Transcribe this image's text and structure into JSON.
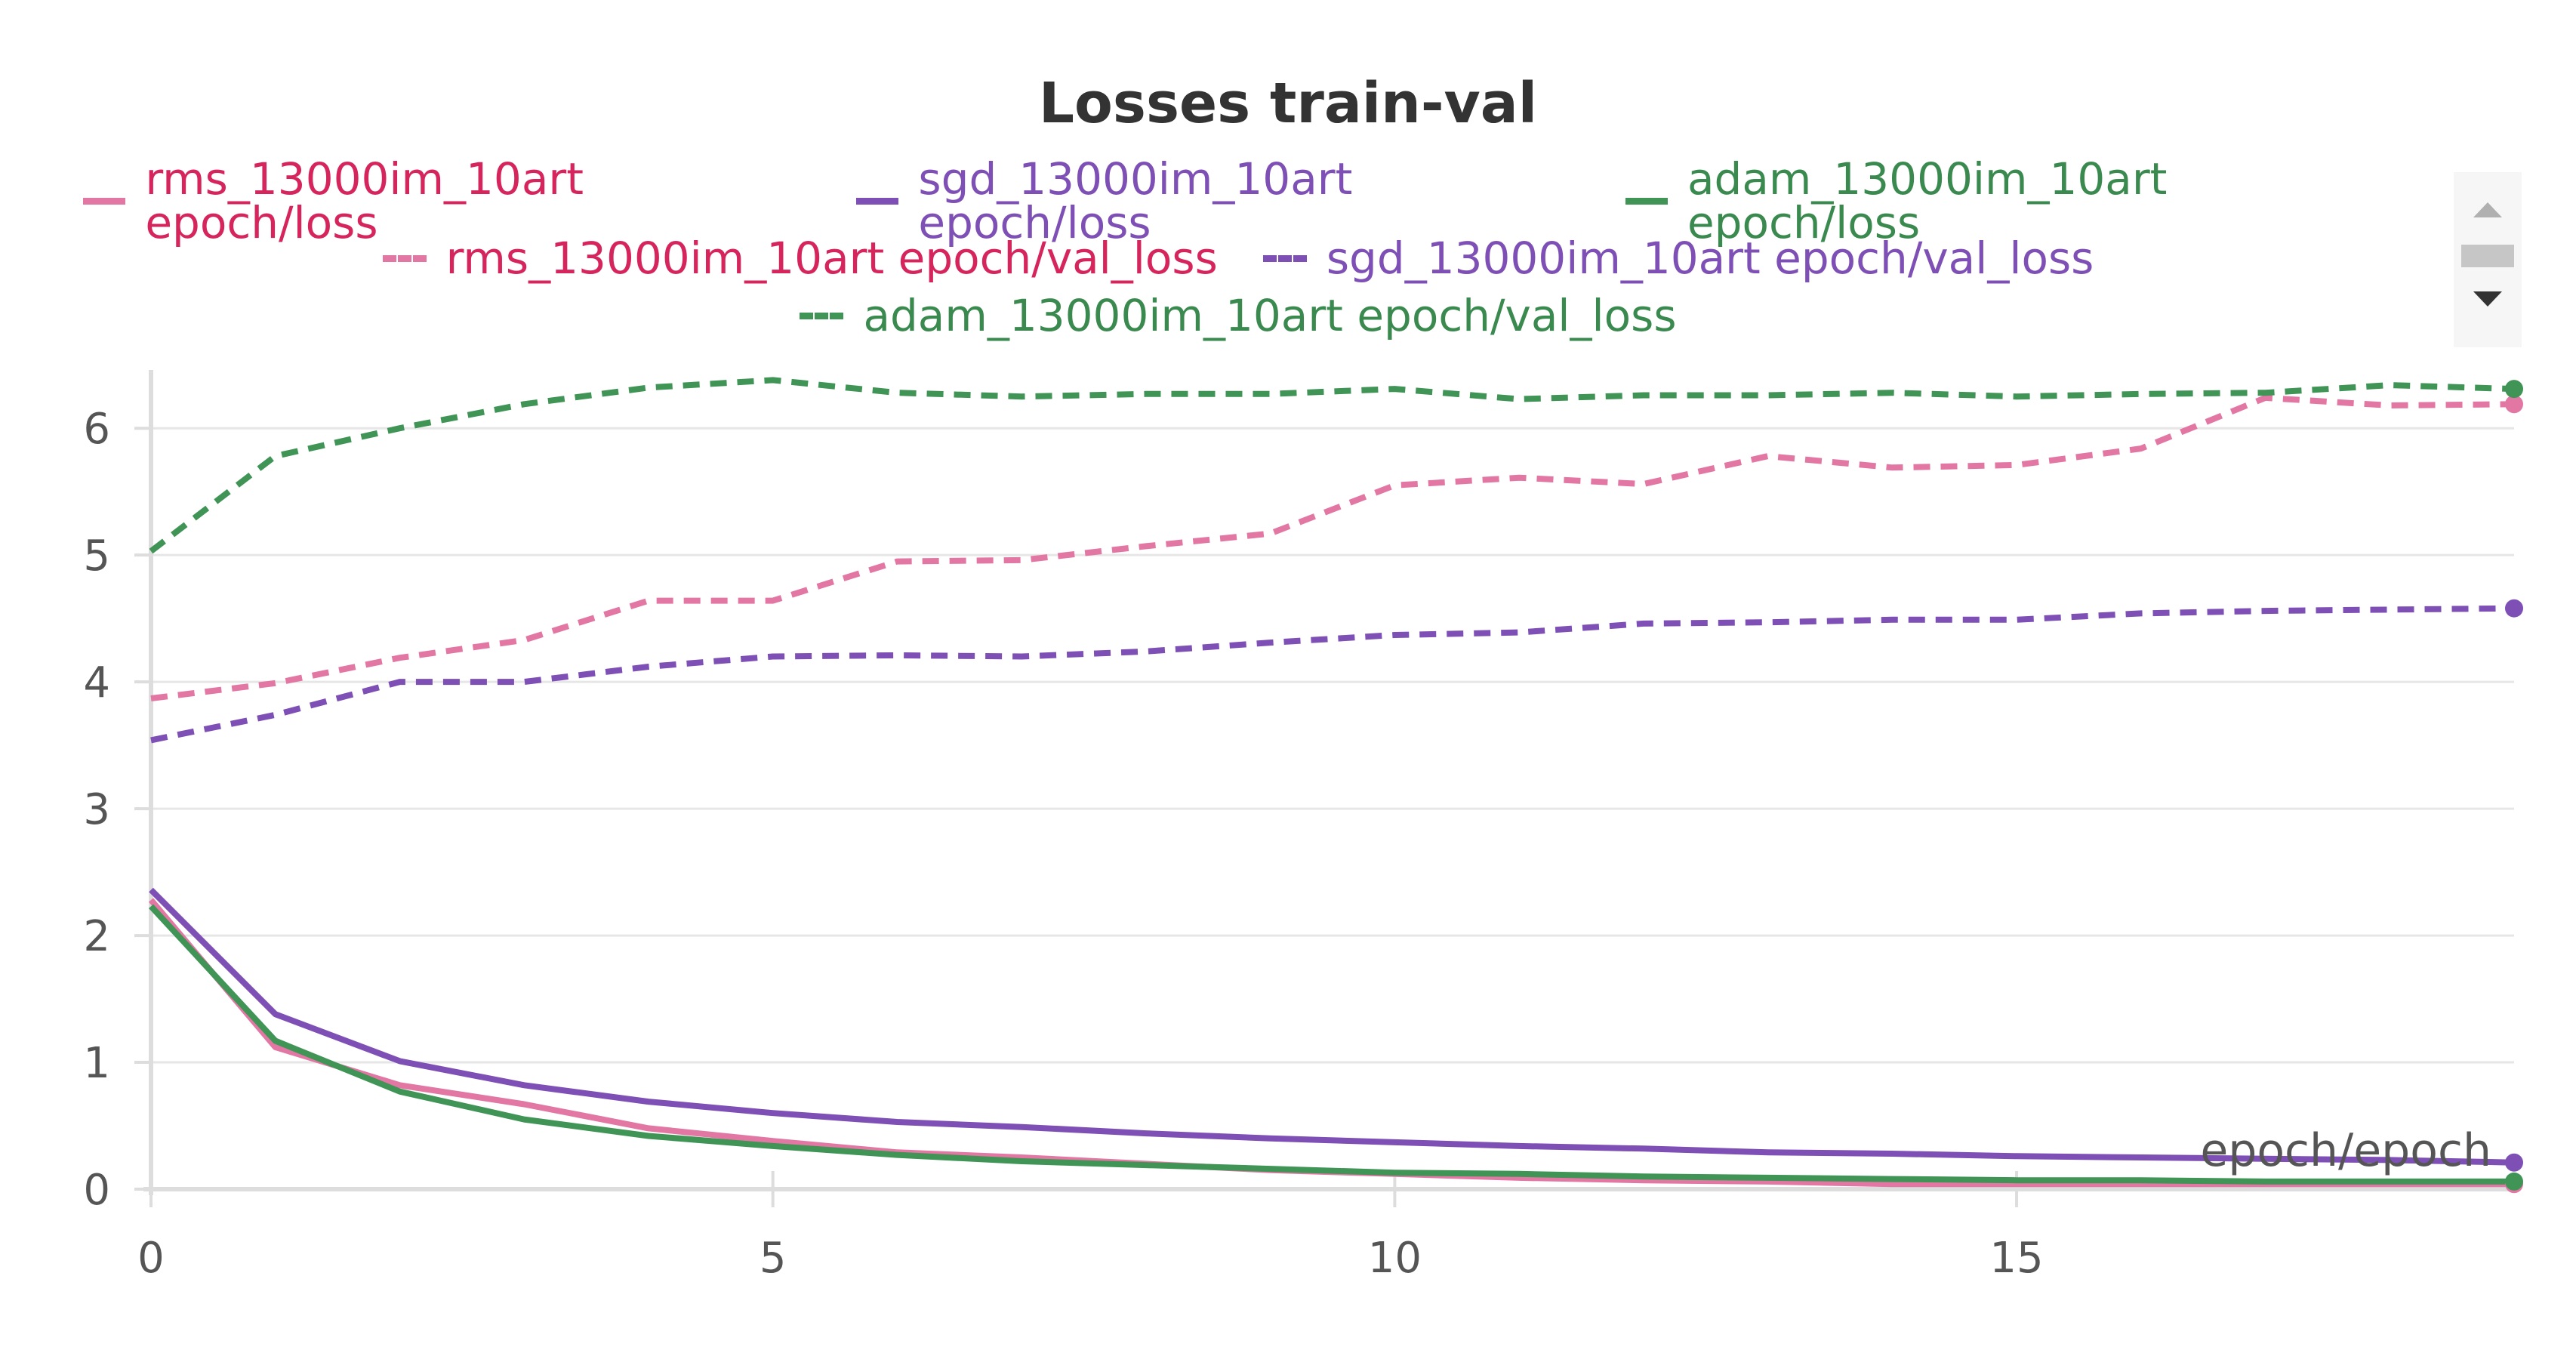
{
  "chart_data": {
    "type": "line",
    "title": "Losses train-val",
    "xlabel": "epoch/epoch",
    "ylabel": "",
    "xlim": [
      0,
      19
    ],
    "ylim": [
      0,
      6.4
    ],
    "xticks": [
      0,
      5,
      10,
      15
    ],
    "yticks": [
      0,
      1,
      2,
      3,
      4,
      5,
      6
    ],
    "grid": "horizontal",
    "legend_position": "top-center",
    "x": [
      0,
      1,
      2,
      3,
      4,
      5,
      6,
      7,
      8,
      9,
      10,
      11,
      12,
      13,
      14,
      15,
      16,
      17,
      18,
      19
    ],
    "series": [
      {
        "name": "rms_13000im_10art epoch/loss",
        "color": "#e377a4",
        "label_color": "#d6245d",
        "dash": false,
        "values": [
          2.28,
          1.12,
          0.82,
          0.67,
          0.48,
          0.38,
          0.29,
          0.25,
          0.2,
          0.15,
          0.12,
          0.09,
          0.07,
          0.06,
          0.04,
          0.04,
          0.04,
          0.04,
          0.04,
          0.04
        ]
      },
      {
        "name": "sgd_13000im_10art epoch/loss",
        "color": "#7e4fb5",
        "label_color": "#7e4fb5",
        "dash": false,
        "values": [
          2.36,
          1.38,
          1.01,
          0.82,
          0.69,
          0.6,
          0.53,
          0.49,
          0.44,
          0.4,
          0.37,
          0.34,
          0.32,
          0.29,
          0.28,
          0.26,
          0.25,
          0.24,
          0.23,
          0.21
        ]
      },
      {
        "name": "adam_13000im_10art epoch/loss",
        "color": "#3f9456",
        "label_color": "#3a8a4f",
        "dash": false,
        "values": [
          2.23,
          1.17,
          0.77,
          0.55,
          0.42,
          0.34,
          0.27,
          0.22,
          0.19,
          0.16,
          0.13,
          0.12,
          0.1,
          0.09,
          0.08,
          0.07,
          0.07,
          0.06,
          0.06,
          0.06
        ]
      },
      {
        "name": "rms_13000im_10art epoch/val_loss",
        "color": "#e377a4",
        "label_color": "#d6245d",
        "dash": true,
        "values": [
          3.87,
          3.99,
          4.19,
          4.33,
          4.64,
          4.64,
          4.95,
          4.96,
          5.07,
          5.17,
          5.55,
          5.61,
          5.56,
          5.78,
          5.69,
          5.71,
          5.84,
          6.24,
          6.18,
          6.19
        ]
      },
      {
        "name": "sgd_13000im_10art epoch/val_loss",
        "color": "#7e4fb5",
        "label_color": "#7e4fb5",
        "dash": true,
        "values": [
          3.54,
          3.74,
          4.0,
          4.0,
          4.12,
          4.2,
          4.21,
          4.2,
          4.24,
          4.31,
          4.37,
          4.39,
          4.46,
          4.47,
          4.49,
          4.49,
          4.54,
          4.56,
          4.57,
          4.58
        ]
      },
      {
        "name": "adam_13000im_10art epoch/val_loss",
        "color": "#3f9456",
        "label_color": "#3a8a4f",
        "dash": true,
        "values": [
          5.03,
          5.78,
          6.0,
          6.19,
          6.32,
          6.38,
          6.28,
          6.25,
          6.27,
          6.27,
          6.31,
          6.23,
          6.26,
          6.26,
          6.28,
          6.25,
          6.27,
          6.28,
          6.34,
          6.31
        ]
      }
    ]
  },
  "legend": {
    "rows": [
      [
        0,
        1,
        2
      ],
      [
        3,
        4
      ],
      [
        5
      ]
    ]
  }
}
